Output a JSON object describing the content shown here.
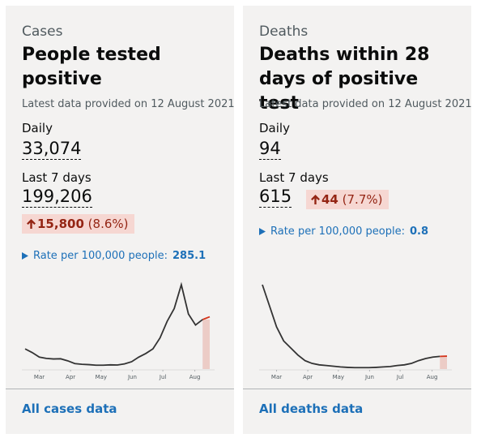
{
  "cards": [
    {
      "category": "Cases",
      "title": "People tested positive",
      "updated": "Latest data provided on 12 August 2021",
      "daily_label": "Daily",
      "daily_value": "33,074",
      "week_label": "Last 7 days",
      "week_value": "199,206",
      "change": "15,800",
      "change_pct": "(8.6%)",
      "rate_label": "Rate per 100,000 people:",
      "rate_value": "285.1",
      "link": "All cases data",
      "chart": {
        "type": "line",
        "color": "#333333",
        "highlight_color": "#d4351c",
        "values": [
          11000,
          9000,
          6500,
          5800,
          5500,
          5600,
          4500,
          3000,
          2600,
          2400,
          2100,
          2100,
          2300,
          2200,
          2800,
          4000,
          6500,
          8500,
          11000,
          17000,
          26000,
          33000,
          46000,
          30000,
          24000,
          27000,
          28500
        ],
        "xticks": [
          {
            "value": 2,
            "label": "Mar"
          },
          {
            "value": 6.4,
            "label": "Apr"
          },
          {
            "value": 10.7,
            "label": "May"
          },
          {
            "value": 15.1,
            "label": "Jun"
          },
          {
            "value": 19.4,
            "label": "Jul"
          },
          {
            "value": 23.9,
            "label": "Aug"
          }
        ]
      }
    },
    {
      "category": "Deaths",
      "title": "Deaths within 28 days of positive test",
      "updated": "Latest data provided on 12 August 2021",
      "daily_label": "Daily",
      "daily_value": "94",
      "week_label": "Last 7 days",
      "week_value": "615",
      "change": "44",
      "change_pct": "(7.7%)",
      "rate_label": "Rate per 100,000 people:",
      "rate_value": "0.8",
      "link": "All deaths data",
      "chart": {
        "type": "line",
        "color": "#333333",
        "highlight_color": "#d4351c",
        "values": [
          600,
          450,
          300,
          200,
          150,
          100,
          60,
          40,
          30,
          25,
          20,
          15,
          12,
          10,
          10,
          10,
          12,
          15,
          18,
          25,
          30,
          40,
          60,
          75,
          85,
          90,
          92
        ],
        "xticks": [
          {
            "value": 2,
            "label": "Mar"
          },
          {
            "value": 6.4,
            "label": "Apr"
          },
          {
            "value": 10.7,
            "label": "May"
          },
          {
            "value": 15.1,
            "label": "Jun"
          },
          {
            "value": 19.4,
            "label": "Jul"
          },
          {
            "value": 23.9,
            "label": "Aug"
          }
        ]
      }
    }
  ]
}
